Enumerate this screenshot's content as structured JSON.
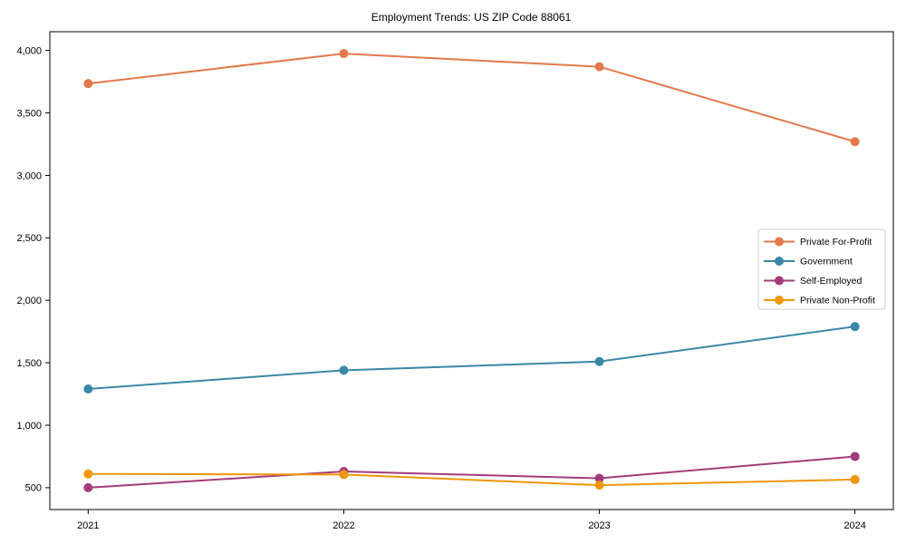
{
  "title": "Employment Trends: US ZIP Code 88061",
  "chart_data": {
    "type": "line",
    "title": "Employment Trends: US ZIP Code 88061",
    "xlabel": "",
    "ylabel": "",
    "grid": false,
    "legend_position": "center right",
    "x": [
      2021,
      2022,
      2023,
      2024
    ],
    "xtick_labels": [
      "2021",
      "2022",
      "2023",
      "2024"
    ],
    "yticks": [
      500,
      1000,
      1500,
      2000,
      2500,
      3000,
      3500,
      4000
    ],
    "ytick_labels": [
      "500",
      "1,000",
      "1,500",
      "2,000",
      "2,500",
      "3,000",
      "3,500",
      "4,000"
    ],
    "xlim": [
      2020.85,
      2024.15
    ],
    "ylim": [
      325,
      4150
    ],
    "series": [
      {
        "name": "Private For-Profit",
        "color": "#E2794A",
        "values": [
          3735,
          3975,
          3870,
          3270
        ]
      },
      {
        "name": "Government",
        "color": "#3A87A8",
        "values": [
          1290,
          1440,
          1510,
          1790
        ]
      },
      {
        "name": "Self-Employed",
        "color": "#A43B7C",
        "values": [
          500,
          630,
          575,
          750
        ]
      },
      {
        "name": "Private Non-Profit",
        "color": "#F0960A",
        "values": [
          610,
          605,
          520,
          565
        ]
      }
    ],
    "axis_color": "#000000",
    "text_color": "#000000",
    "legend_border_color": "#cccccc"
  }
}
